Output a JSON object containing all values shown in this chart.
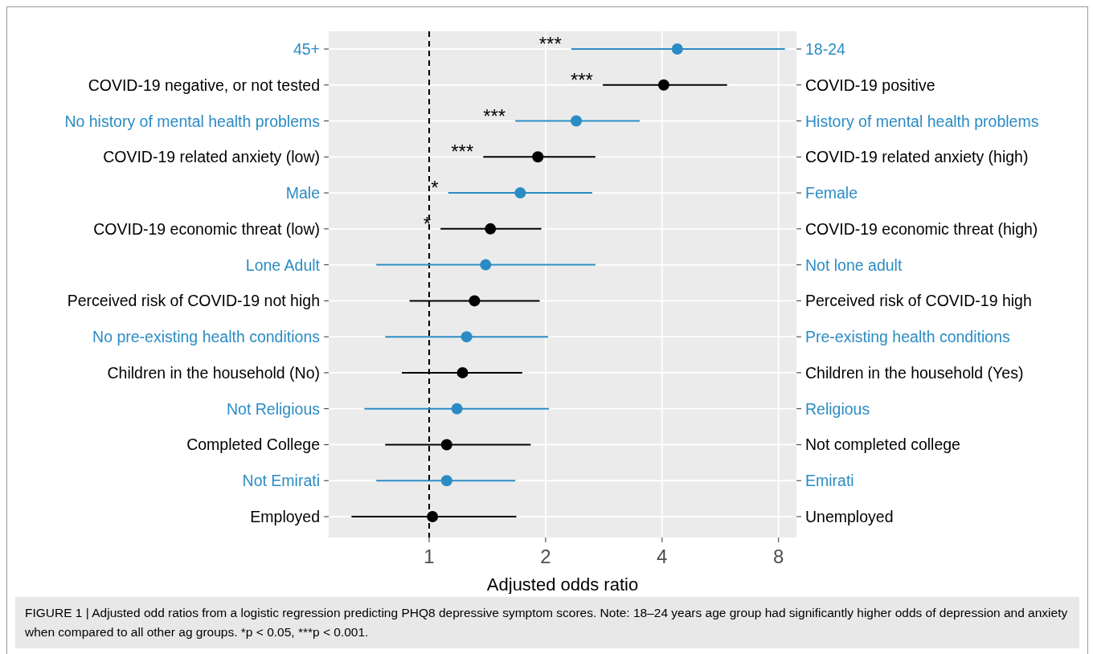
{
  "chart_data": {
    "type": "scatter",
    "orientation": "horizontal",
    "xlabel": "Adjusted odds ratio",
    "categories": [
      "45+",
      "COVID-19 negative, or not tested",
      "No history of mental health problems",
      "COVID-19 related anxiety (low)",
      "Male",
      "COVID-19 economic threat (low)",
      "Lone Adult",
      "Perceived risk of COVID-19 not high",
      "No pre-existing health conditions",
      "Children in the household (No)",
      "Not Religious",
      "Completed College",
      "Not Emirati",
      "Employed"
    ],
    "y2_categories": [
      "18-24",
      "COVID-19 positive",
      "History of mental health problems",
      "COVID-19 related anxiety (high)",
      "Female",
      "COVID-19 economic threat (high)",
      "Not lone adult",
      "Perceived risk of COVID-19 high",
      "Pre-existing health conditions",
      "Children in the household (Yes)",
      "Religious",
      "Not completed college",
      "Emirati",
      "Unemployed"
    ],
    "values": [
      4.38,
      4.04,
      2.4,
      1.91,
      1.72,
      1.44,
      1.4,
      1.31,
      1.25,
      1.22,
      1.18,
      1.11,
      1.11,
      1.02
    ],
    "errors": [
      [
        2.33,
        8.31
      ],
      [
        2.81,
        5.89
      ],
      [
        1.67,
        3.5
      ],
      [
        1.38,
        2.69
      ],
      [
        1.12,
        2.64
      ],
      [
        1.07,
        1.95
      ],
      [
        0.73,
        2.69
      ],
      [
        0.89,
        1.93
      ],
      [
        0.77,
        2.03
      ],
      [
        0.85,
        1.74
      ],
      [
        0.68,
        2.04
      ],
      [
        0.77,
        1.83
      ],
      [
        0.73,
        1.67
      ],
      [
        0.63,
        1.68
      ]
    ],
    "colors": [
      "#2b8cc4",
      "#000000",
      "#2b8cc4",
      "#000000",
      "#2b8cc4",
      "#000000",
      "#2b8cc4",
      "#000000",
      "#2b8cc4",
      "#000000",
      "#2b8cc4",
      "#000000",
      "#2b8cc4",
      "#000000"
    ],
    "xlim": [
      0.55,
      8.9
    ],
    "xticks": [
      1,
      2,
      4,
      8
    ],
    "log": "x",
    "grid": true,
    "marker": "circle",
    "ref_lines": [
      {
        "axis": "x",
        "value": 1,
        "line_style": "dashed",
        "color": "#000000"
      }
    ],
    "annotations": [
      "***",
      "***",
      "***",
      "***",
      "*",
      "*",
      "FIGURE 1 | Adjusted odd ratios from a logistic regression predicting PHQ8 depressive symptom scores. Note: 18–24 years age group had significantly higher odds of depression and anxiety when compared to all other ag groups. *p < 0.05, ***p < 0.001."
    ]
  }
}
